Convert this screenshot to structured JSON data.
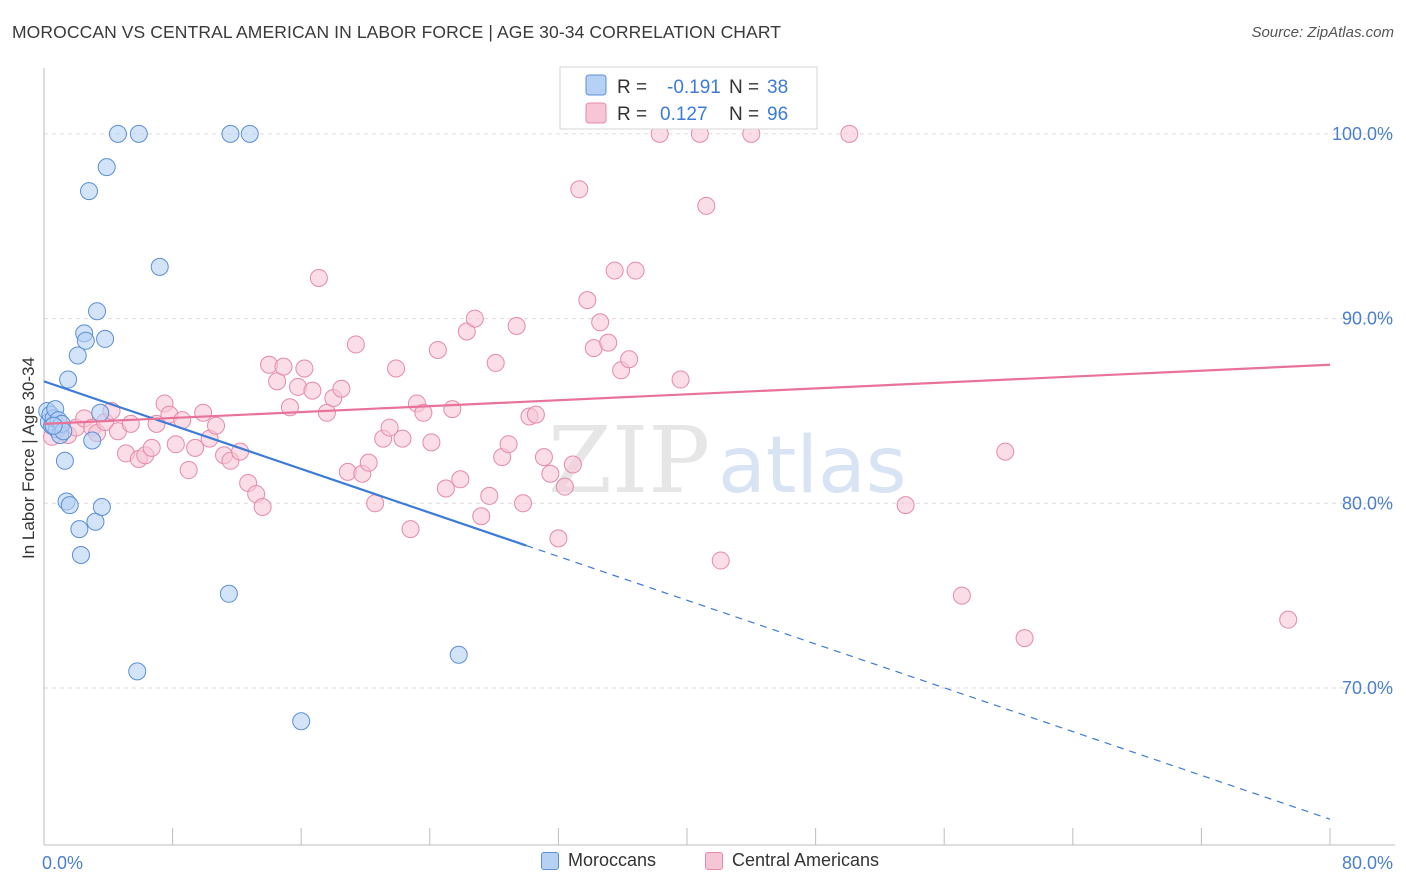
{
  "title": "MOROCCAN VS CENTRAL AMERICAN IN LABOR FORCE | AGE 30-34 CORRELATION CHART",
  "source": "Source: ZipAtlas.com",
  "watermark": {
    "zip": "ZIP",
    "atlas": "atlas"
  },
  "colors": {
    "blue_fill": "#b6d1f4",
    "blue_stroke": "#5b8fd6",
    "blue_line": "#3d7bd8",
    "pink_fill": "#f7c6d6",
    "pink_stroke": "#e68aa8",
    "pink_line": "#e87298",
    "axis_label": "#4a7fcf",
    "grid": "#dcdcdc"
  },
  "legend": {
    "rows": [
      {
        "r_label": "R =",
        "r_value": "-0.191",
        "n_label": "N =",
        "n_value": "38",
        "color": "blue"
      },
      {
        "r_label": "R =",
        "r_value": "0.127",
        "n_label": "N =",
        "n_value": "96",
        "color": "pink"
      }
    ]
  },
  "bottom_legend": [
    "Moroccans",
    "Central Americans"
  ],
  "chart_data": {
    "type": "scatter",
    "title": "MOROCCAN VS CENTRAL AMERICAN IN LABOR FORCE | AGE 30-34 CORRELATION CHART",
    "xlabel": "",
    "ylabel": "In Labor Force | Age 30-34",
    "xlim": [
      0,
      80
    ],
    "ylim": [
      61.5,
      104.0
    ],
    "x_tick_labels": [
      {
        "value": 0,
        "label": "0.0%"
      },
      {
        "value": 80,
        "label": "80.0%"
      }
    ],
    "y_tick_labels": [
      {
        "value": 100,
        "label": "100.0%"
      },
      {
        "value": 90,
        "label": "90.0%"
      },
      {
        "value": 80,
        "label": "80.0%"
      },
      {
        "value": 70,
        "label": "70.0%"
      }
    ],
    "grid": true,
    "legend_position": "top-center",
    "series": [
      {
        "name": "Moroccans",
        "color": "#b6d1f4",
        "points": [
          [
            0.2,
            85.0
          ],
          [
            0.3,
            84.4
          ],
          [
            0.4,
            84.8
          ],
          [
            0.5,
            84.2
          ],
          [
            0.6,
            84.6
          ],
          [
            0.7,
            85.1
          ],
          [
            0.8,
            84.0
          ],
          [
            0.9,
            84.5
          ],
          [
            1.0,
            83.7
          ],
          [
            1.1,
            84.3
          ],
          [
            1.2,
            83.9
          ],
          [
            1.3,
            82.3
          ],
          [
            1.4,
            80.1
          ],
          [
            1.5,
            86.7
          ],
          [
            1.6,
            79.9
          ],
          [
            2.1,
            88.0
          ],
          [
            2.2,
            78.6
          ],
          [
            2.3,
            77.2
          ],
          [
            2.5,
            89.2
          ],
          [
            2.6,
            88.8
          ],
          [
            2.8,
            96.9
          ],
          [
            3.0,
            83.4
          ],
          [
            3.2,
            79.0
          ],
          [
            3.3,
            90.4
          ],
          [
            3.5,
            84.9
          ],
          [
            3.6,
            79.8
          ],
          [
            3.8,
            88.9
          ],
          [
            3.9,
            98.2
          ],
          [
            4.6,
            100.0
          ],
          [
            5.8,
            70.9
          ],
          [
            5.9,
            100.0
          ],
          [
            7.2,
            92.8
          ],
          [
            11.5,
            75.1
          ],
          [
            11.6,
            100.0
          ],
          [
            12.8,
            100.0
          ],
          [
            16.0,
            68.2
          ],
          [
            25.8,
            71.8
          ],
          [
            0.6,
            84.2
          ]
        ]
      },
      {
        "name": "Central Americans",
        "color": "#f7c6d6",
        "points": [
          [
            0.5,
            83.6
          ],
          [
            1.0,
            84.1
          ],
          [
            1.5,
            83.7
          ],
          [
            2.0,
            84.1
          ],
          [
            2.5,
            84.6
          ],
          [
            3.0,
            84.1
          ],
          [
            3.3,
            83.8
          ],
          [
            3.8,
            84.4
          ],
          [
            4.2,
            85.0
          ],
          [
            4.6,
            83.9
          ],
          [
            5.1,
            82.7
          ],
          [
            5.4,
            84.3
          ],
          [
            5.9,
            82.4
          ],
          [
            6.3,
            82.6
          ],
          [
            6.7,
            83.0
          ],
          [
            7.0,
            84.3
          ],
          [
            7.5,
            85.4
          ],
          [
            7.8,
            84.8
          ],
          [
            8.2,
            83.2
          ],
          [
            8.6,
            84.5
          ],
          [
            9.0,
            81.8
          ],
          [
            9.4,
            83.0
          ],
          [
            9.9,
            84.9
          ],
          [
            10.3,
            83.5
          ],
          [
            10.7,
            84.2
          ],
          [
            11.2,
            82.6
          ],
          [
            11.6,
            82.3
          ],
          [
            12.2,
            82.8
          ],
          [
            12.7,
            81.1
          ],
          [
            13.2,
            80.5
          ],
          [
            13.6,
            79.8
          ],
          [
            14.0,
            87.5
          ],
          [
            14.5,
            86.6
          ],
          [
            14.9,
            87.4
          ],
          [
            15.3,
            85.2
          ],
          [
            15.8,
            86.3
          ],
          [
            16.2,
            87.3
          ],
          [
            16.7,
            86.1
          ],
          [
            17.1,
            92.2
          ],
          [
            17.6,
            84.9
          ],
          [
            18.0,
            85.7
          ],
          [
            18.5,
            86.2
          ],
          [
            18.9,
            81.7
          ],
          [
            19.4,
            88.6
          ],
          [
            19.8,
            81.6
          ],
          [
            20.2,
            82.2
          ],
          [
            20.6,
            80.0
          ],
          [
            21.1,
            83.5
          ],
          [
            21.5,
            84.1
          ],
          [
            21.9,
            87.3
          ],
          [
            22.3,
            83.5
          ],
          [
            22.8,
            78.6
          ],
          [
            23.2,
            85.4
          ],
          [
            23.6,
            84.9
          ],
          [
            24.1,
            83.3
          ],
          [
            24.5,
            88.3
          ],
          [
            25.0,
            80.8
          ],
          [
            25.4,
            85.1
          ],
          [
            25.9,
            81.3
          ],
          [
            26.3,
            89.3
          ],
          [
            26.8,
            90.0
          ],
          [
            27.2,
            79.3
          ],
          [
            27.7,
            80.4
          ],
          [
            28.1,
            87.6
          ],
          [
            28.5,
            82.5
          ],
          [
            28.9,
            83.2
          ],
          [
            29.4,
            89.6
          ],
          [
            29.8,
            80.0
          ],
          [
            30.2,
            84.7
          ],
          [
            30.6,
            84.8
          ],
          [
            31.1,
            82.5
          ],
          [
            31.5,
            81.6
          ],
          [
            32.0,
            78.1
          ],
          [
            32.4,
            80.9
          ],
          [
            32.9,
            82.1
          ],
          [
            33.3,
            97.0
          ],
          [
            33.8,
            91.0
          ],
          [
            34.2,
            88.4
          ],
          [
            34.6,
            89.8
          ],
          [
            35.1,
            88.7
          ],
          [
            35.5,
            92.6
          ],
          [
            35.9,
            87.2
          ],
          [
            36.4,
            87.8
          ],
          [
            36.8,
            92.6
          ],
          [
            38.3,
            100.0
          ],
          [
            39.6,
            86.7
          ],
          [
            40.8,
            100.0
          ],
          [
            41.2,
            96.1
          ],
          [
            42.1,
            76.9
          ],
          [
            44.0,
            100.0
          ],
          [
            50.1,
            100.0
          ],
          [
            53.6,
            79.9
          ],
          [
            57.1,
            75.0
          ],
          [
            59.8,
            82.8
          ],
          [
            61.0,
            72.7
          ],
          [
            77.4,
            73.7
          ]
        ]
      }
    ],
    "trend_lines": [
      {
        "series": "Moroccans",
        "x0": 0,
        "y0": 86.6,
        "x1": 80,
        "y1": 62.9,
        "solid_until_x": 30
      },
      {
        "series": "Central Americans",
        "x0": 0,
        "y0": 84.3,
        "x1": 80,
        "y1": 87.5
      }
    ]
  }
}
